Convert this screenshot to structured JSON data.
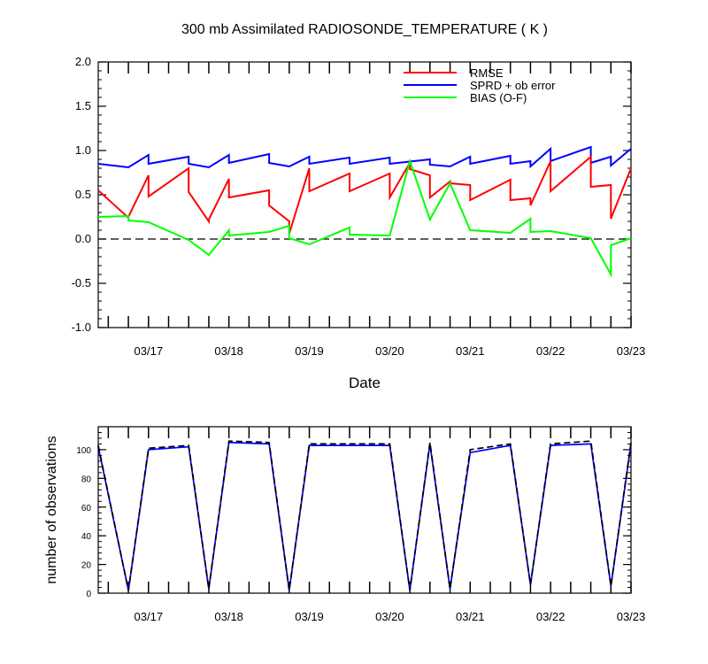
{
  "chart_data": [
    {
      "type": "line",
      "title": "300 mb Assimilated RADIOSONDE_TEMPERATURE ( K )",
      "xlabel": "Date",
      "ylabel": "",
      "ylim": [
        -1.0,
        2.0
      ],
      "yticks": [
        "2.0",
        "1.5",
        "1.0",
        "0.5",
        "0.0",
        "-0.5",
        "-1.0"
      ],
      "xlim": [
        "03/16 09:00",
        "03/23 00:00"
      ],
      "xtick_labels": [
        "03/17",
        "03/18",
        "03/19",
        "03/20",
        "03/21",
        "03/22",
        "03/23"
      ],
      "zero_line": "dashed",
      "legend_position": "top-right",
      "colors": {
        "RMSE": "#ff0000",
        "SPRD + ob error": "#0000ff",
        "BIAS (O-F)": "#00ff00"
      },
      "series": [
        {
          "name": "RMSE",
          "x": [
            "03/16 09:00",
            "03/16 18:00",
            "03/16 18:00",
            "03/17 00:00",
            "03/17 00:00",
            "03/17 12:00",
            "03/17 12:00",
            "03/17 18:00",
            "03/17 18:00",
            "03/18 00:00",
            "03/18 00:00",
            "03/18 12:00",
            "03/18 12:00",
            "03/18 18:00",
            "03/18 18:00",
            "03/19 00:00",
            "03/19 00:00",
            "03/19 12:00",
            "03/19 12:00",
            "03/20 00:00",
            "03/20 00:00",
            "03/20 06:00",
            "03/20 06:00",
            "03/20 12:00",
            "03/20 12:00",
            "03/20 18:00",
            "03/20 18:00",
            "03/21 00:00",
            "03/21 00:00",
            "03/21 12:00",
            "03/21 12:00",
            "03/21 18:00",
            "03/21 18:00",
            "03/22 00:00",
            "03/22 00:00",
            "03/22 12:00",
            "03/22 12:00",
            "03/22 18:00",
            "03/22 18:00",
            "03/23 00:00"
          ],
          "values": [
            0.55,
            0.24,
            0.25,
            0.72,
            0.48,
            0.8,
            0.53,
            0.2,
            0.22,
            0.68,
            0.47,
            0.55,
            0.38,
            0.2,
            0.06,
            0.8,
            0.54,
            0.74,
            0.54,
            0.74,
            0.47,
            0.86,
            0.79,
            0.72,
            0.47,
            0.65,
            0.63,
            0.61,
            0.44,
            0.67,
            0.44,
            0.46,
            0.38,
            0.88,
            0.54,
            0.93,
            0.59,
            0.61,
            0.23,
            0.8
          ]
        },
        {
          "name": "SPRD + ob error",
          "x": [
            "03/16 09:00",
            "03/16 18:00",
            "03/17 00:00",
            "03/17 00:00",
            "03/17 12:00",
            "03/17 12:00",
            "03/17 18:00",
            "03/18 00:00",
            "03/18 00:00",
            "03/18 12:00",
            "03/18 12:00",
            "03/18 18:00",
            "03/19 00:00",
            "03/19 00:00",
            "03/19 12:00",
            "03/19 12:00",
            "03/20 00:00",
            "03/20 00:00",
            "03/20 12:00",
            "03/20 12:00",
            "03/20 18:00",
            "03/21 00:00",
            "03/21 00:00",
            "03/21 12:00",
            "03/21 12:00",
            "03/21 18:00",
            "03/21 18:00",
            "03/22 00:00",
            "03/22 00:00",
            "03/22 12:00",
            "03/22 12:00",
            "03/22 18:00",
            "03/22 18:00",
            "03/23 00:00"
          ],
          "values": [
            0.85,
            0.81,
            0.95,
            0.85,
            0.93,
            0.85,
            0.81,
            0.95,
            0.86,
            0.96,
            0.86,
            0.82,
            0.93,
            0.85,
            0.92,
            0.85,
            0.92,
            0.85,
            0.9,
            0.84,
            0.82,
            0.93,
            0.85,
            0.94,
            0.85,
            0.88,
            0.82,
            1.02,
            0.88,
            1.04,
            0.86,
            0.93,
            0.83,
            1.02
          ]
        },
        {
          "name": "BIAS (O-F)",
          "x": [
            "03/16 09:00",
            "03/16 18:00",
            "03/16 18:00",
            "03/17 00:00",
            "03/17 12:00",
            "03/17 18:00",
            "03/18 00:00",
            "03/18 00:00",
            "03/18 12:00",
            "03/18 18:00",
            "03/18 18:00",
            "03/19 00:00",
            "03/19 12:00",
            "03/19 12:00",
            "03/20 00:00",
            "03/20 06:00",
            "03/20 12:00",
            "03/20 18:00",
            "03/21 00:00",
            "03/21 12:00",
            "03/21 18:00",
            "03/21 18:00",
            "03/22 00:00",
            "03/22 12:00",
            "03/22 18:00",
            "03/22 18:00",
            "03/23 00:00"
          ],
          "values": [
            0.25,
            0.26,
            0.21,
            0.19,
            -0.01,
            -0.18,
            0.1,
            0.04,
            0.08,
            0.15,
            0.01,
            -0.06,
            0.13,
            0.05,
            0.04,
            0.88,
            0.22,
            0.63,
            0.1,
            0.07,
            0.23,
            0.08,
            0.09,
            0.01,
            -0.4,
            -0.07,
            0.01
          ]
        }
      ]
    },
    {
      "type": "line",
      "title": "",
      "xlabel": "",
      "ylabel": "number of observations",
      "ylim": [
        0,
        116
      ],
      "yticks": [
        "100",
        "80",
        "60",
        "40",
        "20",
        "0"
      ],
      "xlim": [
        "03/16 09:00",
        "03/23 00:00"
      ],
      "xtick_labels": [
        "03/17",
        "03/18",
        "03/19",
        "03/20",
        "03/21",
        "03/22",
        "03/23"
      ],
      "colors": {
        "assimilated": "#0000ff",
        "total": "#000000"
      },
      "series": [
        {
          "line": "solid",
          "x": [
            "03/16 09:00",
            "03/16 18:00",
            "03/17 00:00",
            "03/17 12:00",
            "03/17 18:00",
            "03/18 00:00",
            "03/18 12:00",
            "03/18 18:00",
            "03/19 00:00",
            "03/20 00:00",
            "03/20 06:00",
            "03/20 12:00",
            "03/20 18:00",
            "03/21 00:00",
            "03/21 12:00",
            "03/21 18:00",
            "03/22 00:00",
            "03/22 12:00",
            "03/22 18:00",
            "03/23 00:00"
          ],
          "values": [
            102,
            2,
            100,
            102,
            3,
            105,
            104,
            2,
            103,
            103,
            2,
            104,
            3,
            98,
            103,
            6,
            103,
            104,
            5,
            104
          ]
        },
        {
          "line": "dashed",
          "x": [
            "03/16 09:00",
            "03/16 18:00",
            "03/17 00:00",
            "03/17 12:00",
            "03/17 18:00",
            "03/18 00:00",
            "03/18 12:00",
            "03/18 18:00",
            "03/19 00:00",
            "03/20 00:00",
            "03/20 06:00",
            "03/20 12:00",
            "03/20 18:00",
            "03/21 00:00",
            "03/21 12:00",
            "03/21 18:00",
            "03/22 00:00",
            "03/22 12:00",
            "03/22 18:00",
            "03/23 00:00"
          ],
          "values": [
            103,
            2,
            101,
            103,
            3,
            106,
            105,
            2,
            104,
            104,
            2,
            105,
            3,
            100,
            104,
            6,
            104,
            106,
            5,
            105
          ]
        }
      ]
    }
  ]
}
